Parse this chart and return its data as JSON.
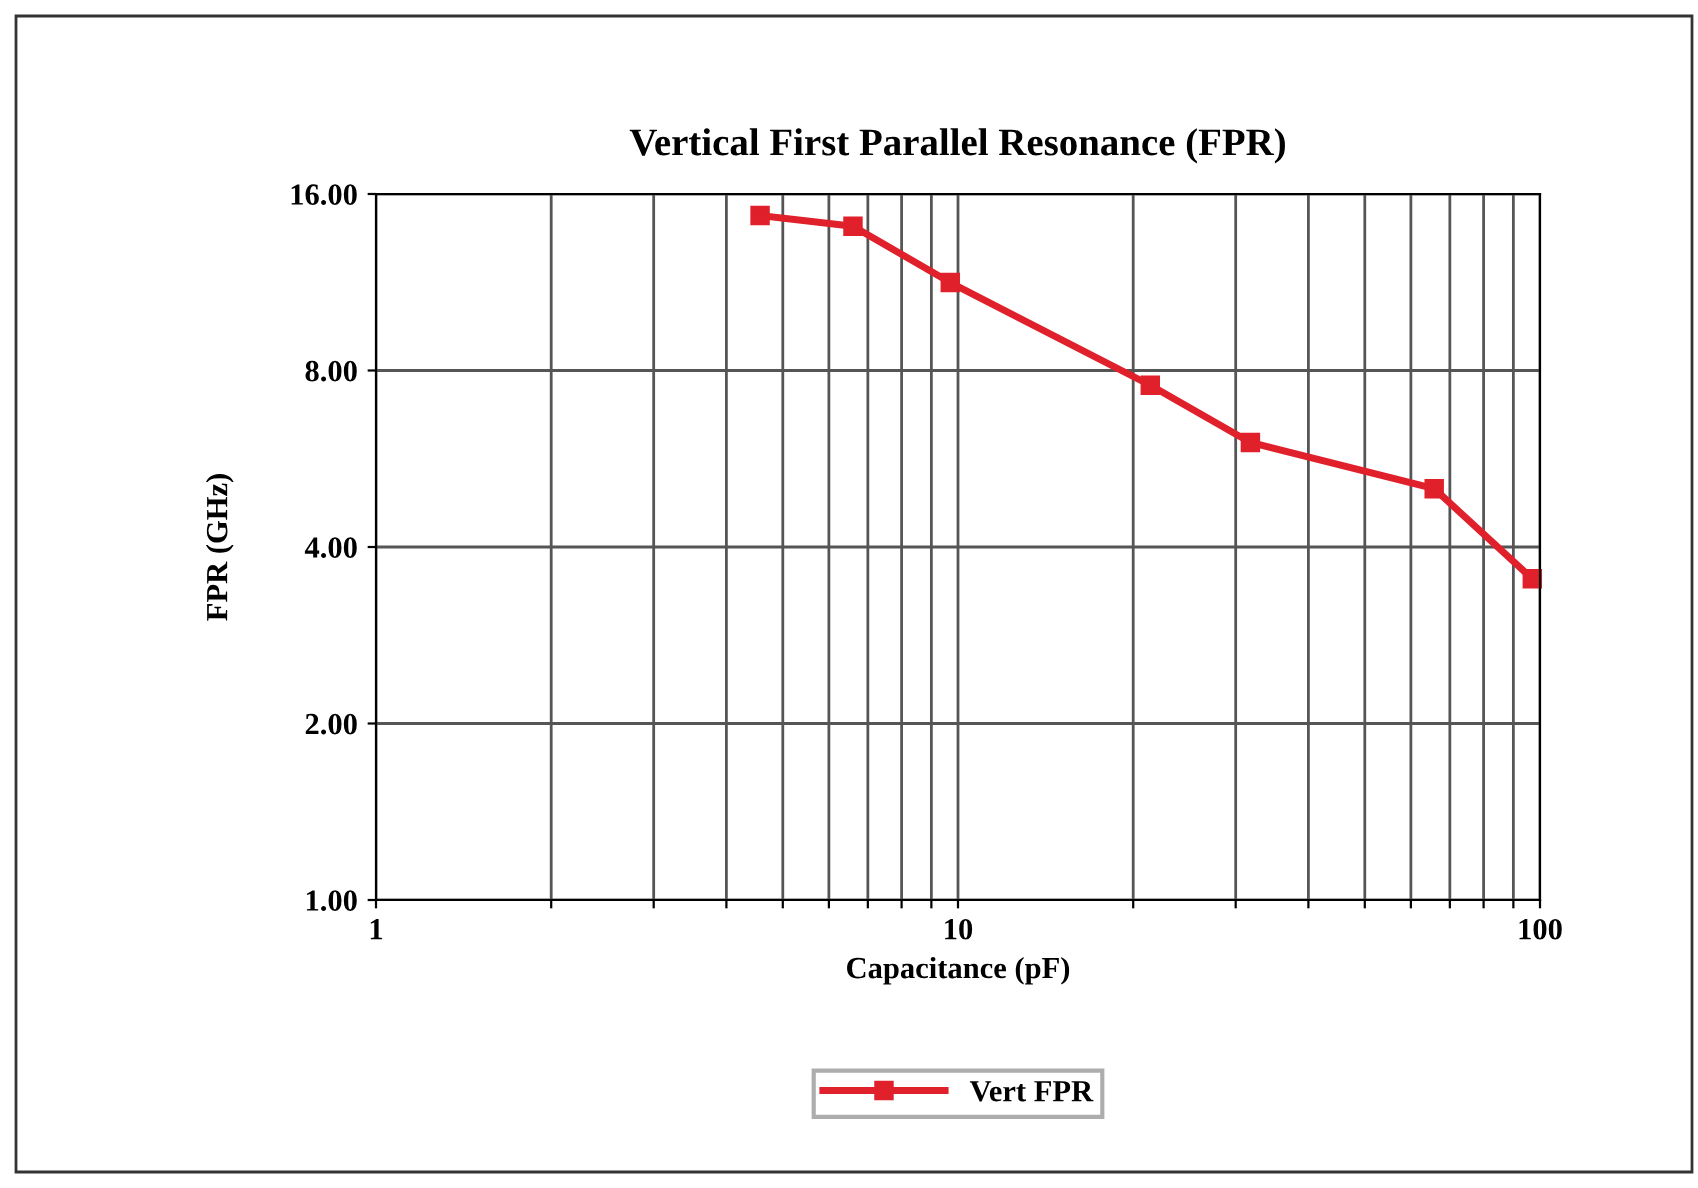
{
  "chart_data": {
    "type": "line",
    "title": "Vertical First Parallel Resonance (FPR)",
    "xlabel": "Capacitance (pF)",
    "ylabel": "FPR (GHz)",
    "log": "xy",
    "xlim": [
      1,
      100
    ],
    "ylim": [
      1,
      16
    ],
    "xticks": [
      1,
      {
        "value": 2,
        "label": null
      },
      {
        "value": 3,
        "label": null
      },
      {
        "value": 4,
        "label": null
      },
      {
        "value": 5,
        "label": null
      },
      {
        "value": 6,
        "label": null
      },
      {
        "value": 7,
        "label": null
      },
      {
        "value": 8,
        "label": null
      },
      {
        "value": 9,
        "label": null
      },
      10,
      {
        "value": 20,
        "label": null
      },
      {
        "value": 30,
        "label": null
      },
      {
        "value": 40,
        "label": null
      },
      {
        "value": 50,
        "label": null
      },
      {
        "value": 60,
        "label": null
      },
      {
        "value": 70,
        "label": null
      },
      {
        "value": 80,
        "label": null
      },
      {
        "value": 90,
        "label": null
      },
      100
    ],
    "yticks": [
      {
        "value": 1,
        "label": "1.00"
      },
      {
        "value": 2,
        "label": "2.00"
      },
      {
        "value": 4,
        "label": "4.00"
      },
      {
        "value": 8,
        "label": "8.00"
      },
      {
        "value": 16,
        "label": "16.00"
      }
    ],
    "grid": true,
    "legend": "bottom",
    "marker": "square",
    "line_style": "solid",
    "series": [
      {
        "name": "Vert FPR",
        "color": "#e0202a",
        "x": [
          4.57,
          6.6,
          9.7,
          21.4,
          31.8,
          65.8,
          97
        ],
        "values": [
          14.7,
          14.1,
          11.3,
          7.55,
          6.03,
          5.03,
          3.53
        ]
      }
    ]
  }
}
